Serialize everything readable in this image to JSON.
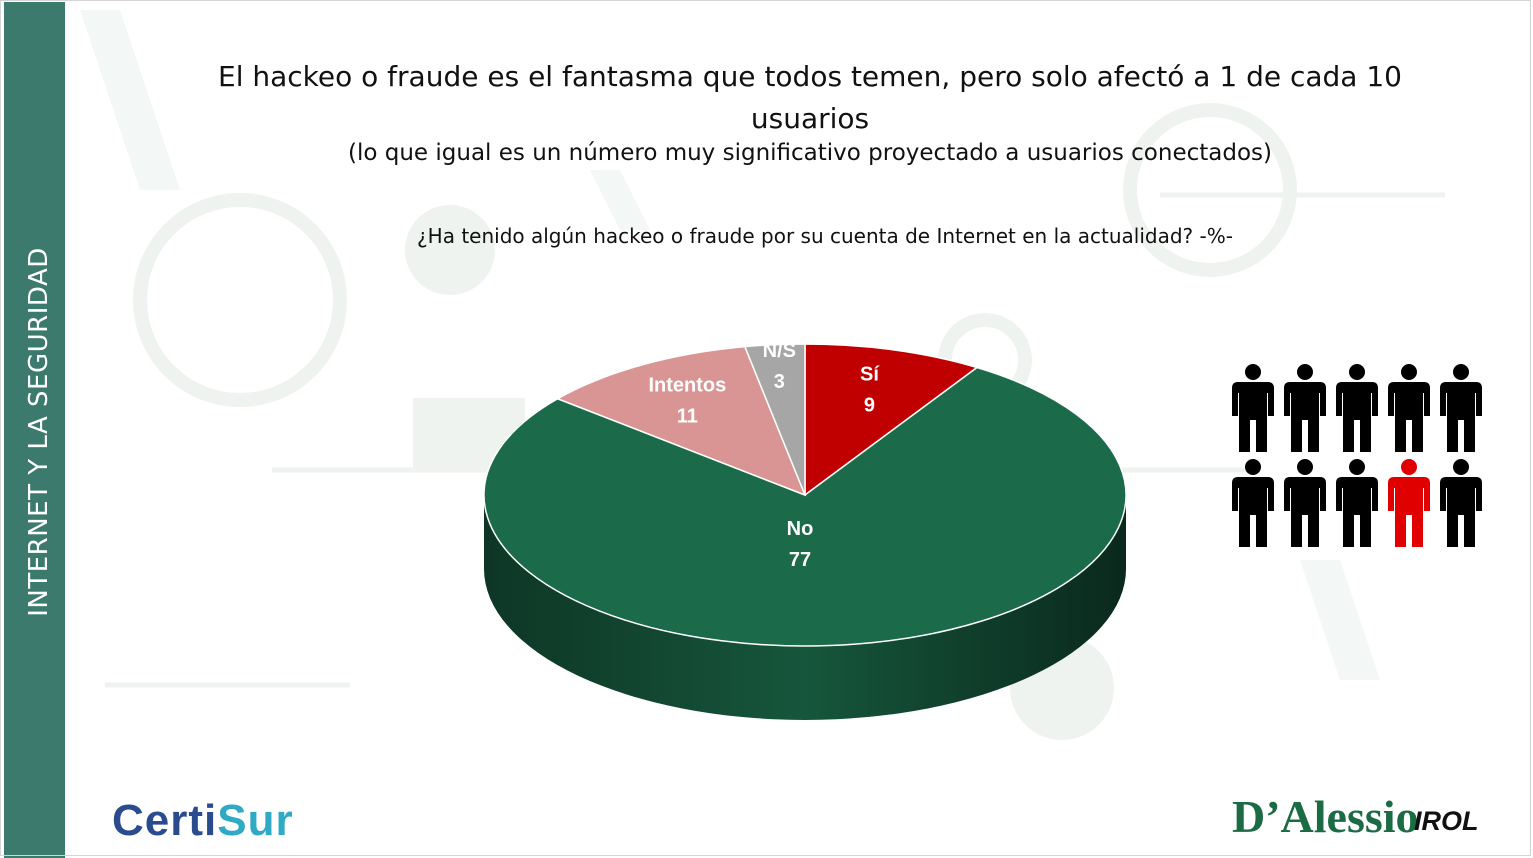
{
  "sidebar": {
    "label": "INTERNET Y LA SEGURIDAD"
  },
  "header": {
    "title": "El hackeo o fraude es el fantasma que todos temen, pero solo afectó a 1 de cada 10 usuarios",
    "subtitle": "(lo que igual es un número muy significativo proyectado a usuarios conectados)"
  },
  "chart_data": {
    "type": "pie",
    "title": "¿Ha tenido algún hackeo o fraude por su cuenta de Internet en la actualidad? -%-",
    "slices": [
      {
        "label": "Sí",
        "value": 9,
        "color": "#c00000"
      },
      {
        "label": "No",
        "value": 77,
        "color": "#1b6b4b"
      },
      {
        "label": "Intentos",
        "value": 11,
        "color": "#d99594"
      },
      {
        "label": "N/S",
        "value": 3,
        "color": "#a6a6a6"
      }
    ],
    "style": "3d"
  },
  "people_graphic": {
    "total": 10,
    "highlighted": 1,
    "highlight_position": 9,
    "base_color": "#000000",
    "highlight_color": "#e00000"
  },
  "logos": {
    "certisur": {
      "part1": "Certi",
      "part2": "Sur"
    },
    "dalessio": "D’Alessio",
    "irol": "IROL"
  }
}
